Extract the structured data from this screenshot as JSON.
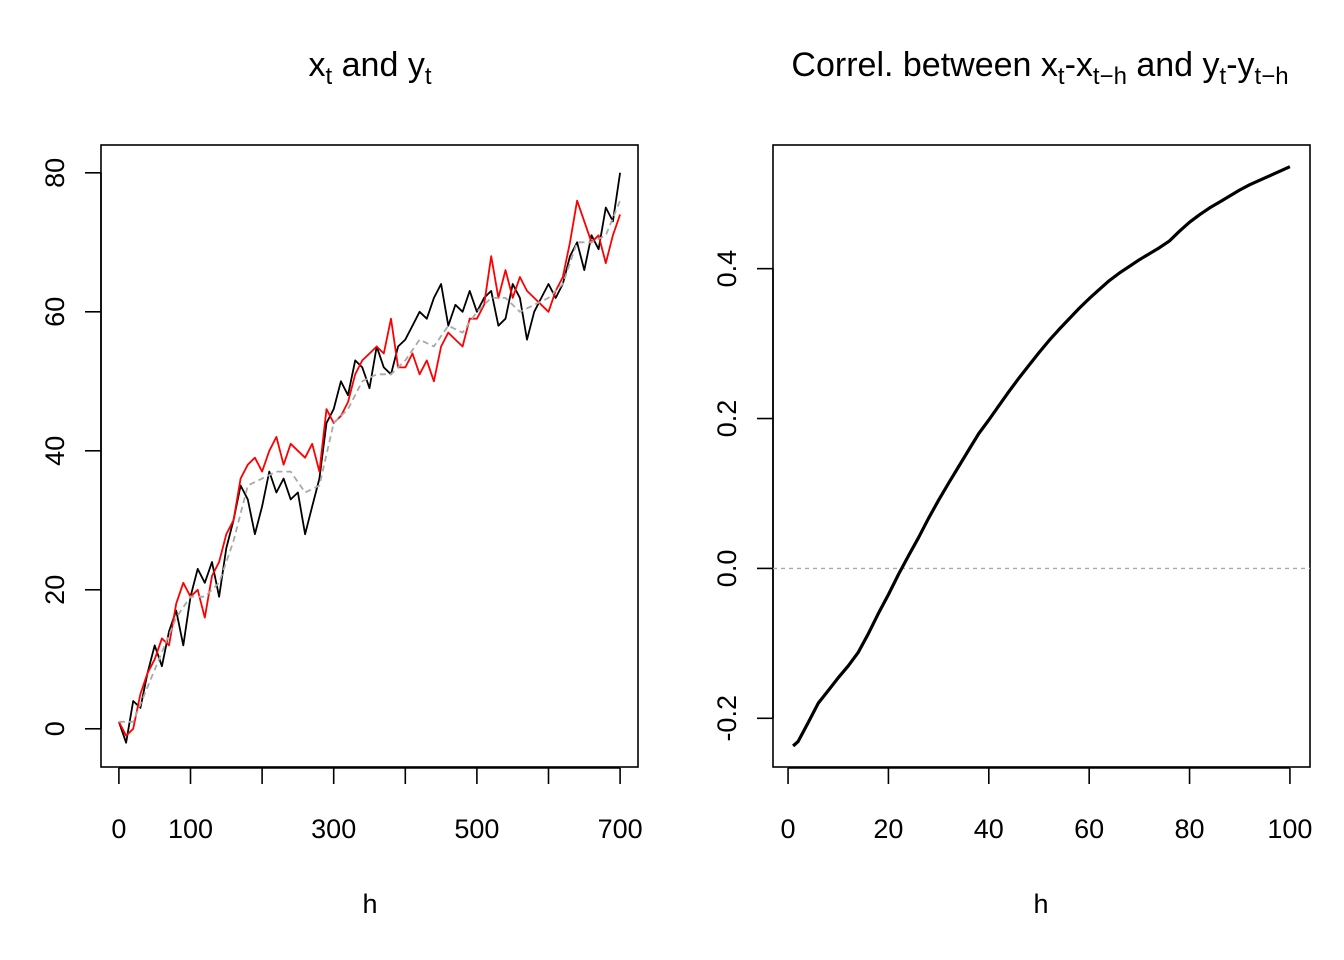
{
  "chart_data": [
    {
      "type": "line",
      "title": {
        "a": "x",
        "a_sub": "t",
        "mid": " and ",
        "b": "y",
        "b_sub": "t"
      },
      "xlabel": "h",
      "ylabel": "",
      "xlim": [
        -25,
        725
      ],
      "ylim": [
        -5.5,
        84
      ],
      "xticks": [
        0,
        100,
        200,
        300,
        400,
        500,
        600,
        700
      ],
      "xtick_labels": [
        "0",
        "100",
        "",
        "300",
        "",
        "500",
        "",
        "700"
      ],
      "yticks": [
        0,
        20,
        40,
        60,
        80
      ],
      "ytick_labels": [
        "0",
        "20",
        "40",
        "60",
        "80"
      ],
      "grid": false,
      "series": [
        {
          "color": "#000000",
          "style": "solid",
          "x": [
            0,
            10,
            20,
            30,
            40,
            50,
            60,
            70,
            80,
            90,
            100,
            110,
            120,
            130,
            140,
            150,
            160,
            170,
            180,
            190,
            200,
            210,
            220,
            230,
            240,
            250,
            260,
            270,
            280,
            290,
            300,
            310,
            320,
            330,
            340,
            350,
            360,
            370,
            380,
            390,
            400,
            410,
            420,
            430,
            440,
            450,
            460,
            470,
            480,
            490,
            500,
            510,
            520,
            530,
            540,
            550,
            560,
            570,
            580,
            590,
            600,
            610,
            620,
            630,
            640,
            650,
            660,
            670,
            680,
            690,
            700
          ],
          "y": [
            1,
            -2,
            4,
            3,
            8,
            12,
            9,
            14,
            17,
            12,
            19,
            23,
            21,
            24,
            19,
            26,
            30,
            35,
            33,
            28,
            32,
            37,
            34,
            36,
            33,
            34,
            28,
            32,
            36,
            44,
            46,
            50,
            48,
            53,
            52,
            49,
            55,
            52,
            51,
            55,
            56,
            58,
            60,
            59,
            62,
            64,
            58,
            61,
            60,
            63,
            60,
            62,
            63,
            58,
            59,
            64,
            62,
            56,
            60,
            62,
            64,
            62,
            64,
            68,
            70,
            66,
            71,
            69,
            75,
            73,
            80
          ]
        },
        {
          "color": "#FF0000",
          "style": "solid",
          "x": [
            0,
            10,
            20,
            30,
            40,
            50,
            60,
            70,
            80,
            90,
            100,
            110,
            120,
            130,
            140,
            150,
            160,
            170,
            180,
            190,
            200,
            210,
            220,
            230,
            240,
            250,
            260,
            270,
            280,
            290,
            300,
            310,
            320,
            330,
            340,
            350,
            360,
            370,
            380,
            390,
            400,
            410,
            420,
            430,
            440,
            450,
            460,
            470,
            480,
            490,
            500,
            510,
            520,
            530,
            540,
            550,
            560,
            570,
            580,
            590,
            600,
            610,
            620,
            630,
            640,
            650,
            660,
            670,
            680,
            690,
            700
          ],
          "y": [
            1,
            -1,
            0,
            5,
            8,
            10,
            13,
            12,
            18,
            21,
            19,
            20,
            16,
            22,
            24,
            28,
            30,
            36,
            38,
            39,
            37,
            40,
            42,
            38,
            41,
            40,
            39,
            41,
            37,
            46,
            44,
            45,
            47,
            51,
            53,
            54,
            55,
            54,
            59,
            52,
            52,
            54,
            51,
            53,
            50,
            55,
            57,
            56,
            55,
            59,
            59,
            61,
            68,
            62,
            66,
            62,
            65,
            63,
            62,
            61,
            60,
            63,
            65,
            70,
            76,
            73,
            70,
            71,
            67,
            71,
            74
          ]
        },
        {
          "color": "#A9A9A9",
          "style": "dashed",
          "x": [
            0,
            20,
            40,
            60,
            80,
            100,
            120,
            140,
            160,
            180,
            200,
            220,
            240,
            260,
            280,
            300,
            320,
            340,
            360,
            380,
            400,
            420,
            440,
            460,
            480,
            500,
            520,
            540,
            560,
            580,
            600,
            620,
            640,
            660,
            680,
            700
          ],
          "y": [
            1,
            1,
            6,
            11,
            16,
            19,
            19,
            21,
            27,
            35,
            36,
            37,
            37,
            34,
            35,
            44,
            46,
            50,
            51,
            51,
            53,
            56,
            55,
            58,
            57,
            60,
            62,
            62,
            60,
            61,
            62,
            64,
            70,
            70,
            71,
            76
          ]
        }
      ]
    },
    {
      "type": "line",
      "title": {
        "text1": "Correl. between ",
        "x": "x",
        "x_sub": "t",
        "dash1": "-",
        "x2": "x",
        "x2_sub": "t−h",
        "mid": " and ",
        "y": "y",
        "y_sub": "t",
        "dash2": "-",
        "y2": "y",
        "y2_sub": "t−h"
      },
      "xlabel": "h",
      "ylabel": "",
      "xlim": [
        -3,
        104
      ],
      "ylim": [
        -0.265,
        0.565
      ],
      "xticks": [
        0,
        20,
        40,
        60,
        80,
        100
      ],
      "xtick_labels": [
        "0",
        "20",
        "40",
        "60",
        "80",
        "100"
      ],
      "yticks": [
        -0.2,
        0.0,
        0.2,
        0.4
      ],
      "ytick_labels": [
        "-0.2",
        "0.0",
        "0.2",
        "0.4"
      ],
      "hline": 0,
      "hline_color": "#A9A9A9",
      "grid": false,
      "series": [
        {
          "color": "#000000",
          "style": "solid",
          "x": [
            1,
            2,
            4,
            6,
            8,
            10,
            12,
            14,
            16,
            18,
            20,
            22,
            24,
            26,
            28,
            30,
            32,
            34,
            36,
            38,
            40,
            42,
            44,
            46,
            48,
            50,
            52,
            54,
            56,
            58,
            60,
            62,
            64,
            66,
            68,
            70,
            72,
            74,
            76,
            78,
            80,
            82,
            84,
            86,
            88,
            90,
            92,
            94,
            96,
            98,
            100
          ],
          "y": [
            -0.237,
            -0.231,
            -0.206,
            -0.18,
            -0.163,
            -0.146,
            -0.13,
            -0.112,
            -0.087,
            -0.06,
            -0.035,
            -0.008,
            0.017,
            0.041,
            0.067,
            0.091,
            0.114,
            0.136,
            0.158,
            0.18,
            0.198,
            0.217,
            0.236,
            0.254,
            0.271,
            0.288,
            0.304,
            0.319,
            0.333,
            0.347,
            0.36,
            0.372,
            0.384,
            0.394,
            0.403,
            0.412,
            0.42,
            0.428,
            0.437,
            0.45,
            0.462,
            0.472,
            0.481,
            0.489,
            0.497,
            0.505,
            0.512,
            0.518,
            0.524,
            0.53,
            0.536
          ]
        }
      ]
    }
  ]
}
